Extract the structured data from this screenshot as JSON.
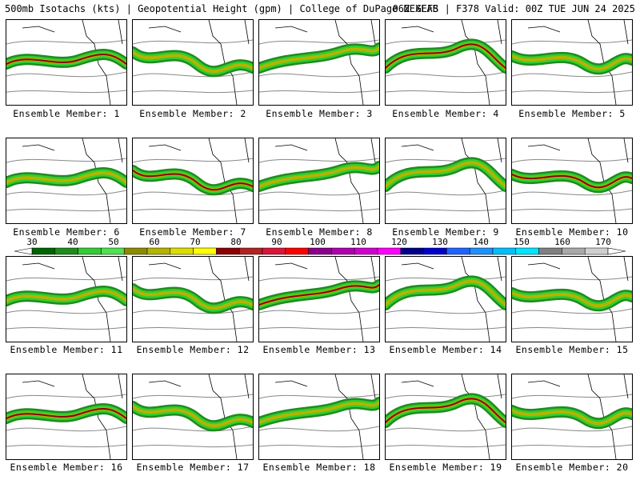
{
  "header": {
    "left": "500mb Isotachs (kts) | Geopotential Height (gpm) | College of DuPage NEXLAB",
    "right": "06Z GEFS | F378 Valid: 00Z TUE JUN 24 2025"
  },
  "legend": {
    "labels": [
      "30",
      "40",
      "50",
      "60",
      "70",
      "80",
      "90",
      "100",
      "110",
      "120",
      "130",
      "140",
      "150",
      "160",
      "170"
    ],
    "colors": [
      "#006400",
      "#1e8c1e",
      "#32cd32",
      "#4fe14f",
      "#8b8b00",
      "#b4b400",
      "#dcdc00",
      "#ffff00",
      "#8b0000",
      "#b22222",
      "#dc143c",
      "#ff0000",
      "#8b008b",
      "#b000b0",
      "#d000d0",
      "#ff00ff",
      "#00008b",
      "#0000cd",
      "#1e64ff",
      "#1e90ff",
      "#00bfff",
      "#00e5ff",
      "#808080",
      "#a9a9a9",
      "#cfcfcf"
    ]
  },
  "panels": [
    {
      "caption": "Ensemble Member: 1"
    },
    {
      "caption": "Ensemble Member: 2"
    },
    {
      "caption": "Ensemble Member: 3"
    },
    {
      "caption": "Ensemble Member: 4"
    },
    {
      "caption": "Ensemble Member: 5"
    },
    {
      "caption": "Ensemble Member: 6"
    },
    {
      "caption": "Ensemble Member: 7"
    },
    {
      "caption": "Ensemble Member: 8"
    },
    {
      "caption": "Ensemble Member: 9"
    },
    {
      "caption": "Ensemble Member: 10"
    },
    {
      "caption": "Ensemble Member: 11"
    },
    {
      "caption": "Ensemble Member: 12"
    },
    {
      "caption": "Ensemble Member: 13"
    },
    {
      "caption": "Ensemble Member: 14"
    },
    {
      "caption": "Ensemble Member: 15"
    },
    {
      "caption": "Ensemble Member: 16"
    },
    {
      "caption": "Ensemble Member: 17"
    },
    {
      "caption": "Ensemble Member: 18"
    },
    {
      "caption": "Ensemble Member: 19"
    },
    {
      "caption": "Ensemble Member: 20"
    }
  ]
}
